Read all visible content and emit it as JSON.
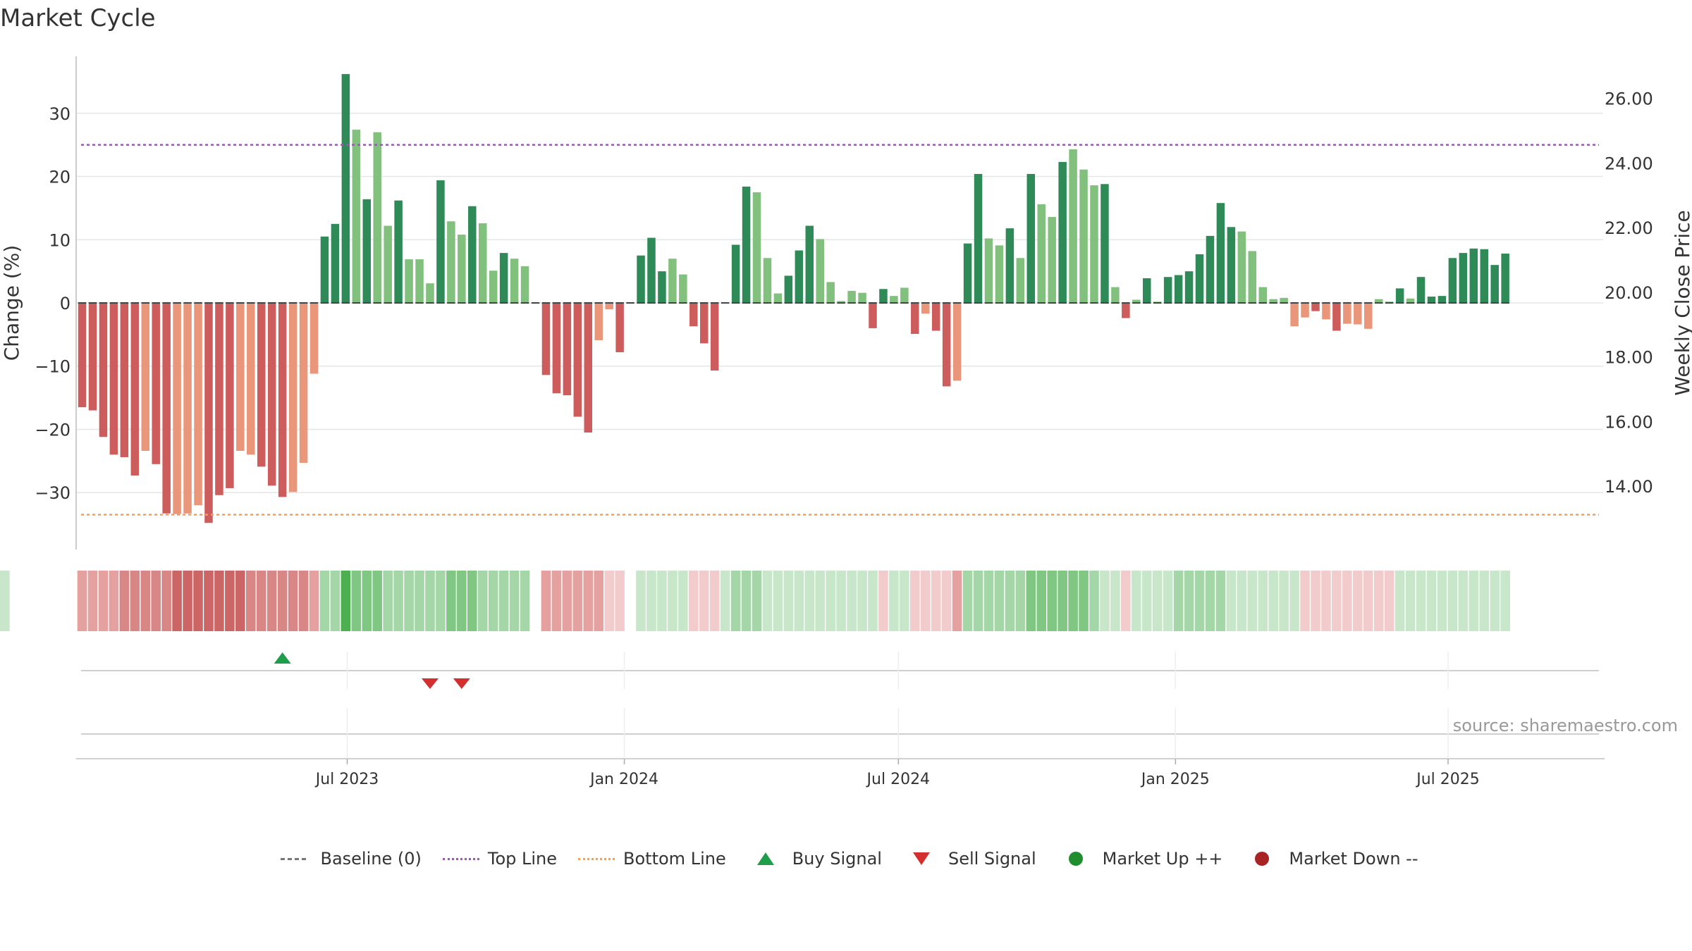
{
  "title": "Market Cycle",
  "source": "source: sharemaestro.com",
  "colors": {
    "up_dark": "#2e8b57",
    "up_light": "#82c07e",
    "down_dark": "#cd5c5c",
    "down_light": "#e9967a",
    "top_line": "#9b59b6",
    "bottom_line": "#f0a060",
    "buy": "#1f9d4a",
    "sell": "#d32f2f",
    "market_up": "#1e8e2e",
    "market_down": "#a82424"
  },
  "legend": [
    {
      "label": "Baseline (0)",
      "symbol": "dash-grey"
    },
    {
      "label": "Top Line",
      "symbol": "dot-purple"
    },
    {
      "label": "Bottom Line",
      "symbol": "dot-orange"
    },
    {
      "label": "Buy Signal",
      "symbol": "tri-up"
    },
    {
      "label": "Sell Signal",
      "symbol": "tri-down"
    },
    {
      "label": "Market Up ++",
      "symbol": "circle-green"
    },
    {
      "label": "Market Down --",
      "symbol": "circle-red"
    }
  ],
  "chart_data": {
    "type": "bar",
    "title": "Market Cycle",
    "ylabel": "Change (%)",
    "y2label": "Weekly Close Price",
    "ylim": [
      -39,
      39
    ],
    "y2lim": [
      12.28,
      27.54
    ],
    "yticks": [
      -30,
      -20,
      -10,
      0,
      10,
      20,
      30
    ],
    "ytick_labels": [
      "−30",
      "−20",
      "−10",
      "0",
      "10",
      "20",
      "30"
    ],
    "y2ticks": [
      14.0,
      16.0,
      18.0,
      20.0,
      22.0,
      24.0,
      26.0
    ],
    "y2tick_labels": [
      "14.00",
      "16.00",
      "18.00",
      "20.00",
      "22.00",
      "24.00",
      "26.00"
    ],
    "top_line": 25,
    "bottom_line": -33.5,
    "baseline": 0,
    "xlim": [
      "2023-01-02",
      "2025-10-12"
    ],
    "xticks": [
      "2023-07-01",
      "2024-01-01",
      "2024-07-01",
      "2025-01-01",
      "2025-07-01"
    ],
    "xtick_labels": [
      "Jul 2023",
      "Jan 2024",
      "Jul 2024",
      "Jan 2025",
      "Jul 2025"
    ],
    "grid": true,
    "legend_position": "bottom",
    "start_date": "2023-01-06",
    "values": [
      -16.5,
      -17,
      -21.2,
      -24,
      -24.4,
      -27.3,
      -23.4,
      -25.5,
      -33.3,
      -33.4,
      -33.3,
      -32,
      -34.8,
      -30.4,
      -29.3,
      -23.4,
      -24,
      -25.9,
      -28.9,
      -30.7,
      -29.9,
      -25.3,
      -11.2,
      10.5,
      12.5,
      36.2,
      27.4,
      16.4,
      27,
      12.2,
      16.2,
      6.9,
      6.9,
      3.1,
      19.4,
      12.9,
      10.8,
      15.3,
      12.6,
      5.1,
      7.9,
      7,
      5.8,
      0,
      -11.4,
      -14.3,
      -14.6,
      -18,
      -20.5,
      -5.9,
      -1,
      -7.8,
      0,
      7.5,
      10.3,
      5,
      7,
      4.5,
      -3.7,
      -6.4,
      -10.7,
      0,
      9.2,
      18.4,
      17.5,
      7.1,
      1.5,
      4.3,
      8.3,
      12.2,
      10.1,
      3.3,
      0.3,
      1.9,
      1.6,
      -4,
      2.2,
      1.1,
      2.4,
      -4.9,
      -1.7,
      -4.4,
      -13.2,
      -12.3,
      9.4,
      20.4,
      10.2,
      9.1,
      11.8,
      7.1,
      20.4,
      15.6,
      13.6,
      22.3,
      24.3,
      21.1,
      18.6,
      18.8,
      2.5,
      -2.4,
      0.5,
      3.9,
      0.2,
      4.1,
      4.4,
      5,
      7.7,
      10.6,
      15.8,
      12,
      11.3,
      8.2,
      2.5,
      0.6,
      0.8,
      -3.7,
      -2.3,
      -1.3,
      -2.6,
      -4.4,
      -3.3,
      -3.4,
      -4.1,
      0.6,
      0.2,
      2.3,
      0.7,
      4.1,
      1,
      1.1,
      7.1,
      7.9,
      8.6,
      8.5,
      6,
      7.8
    ],
    "light_bars": [
      6,
      9,
      10,
      11,
      15,
      16,
      20,
      21,
      22,
      26,
      28,
      29,
      31,
      32,
      33,
      35,
      36,
      38,
      39,
      41,
      42,
      49,
      50,
      56,
      57,
      64,
      65,
      66,
      70,
      71,
      72,
      73,
      74,
      77,
      78,
      80,
      83,
      86,
      87,
      89,
      91,
      92,
      94,
      95,
      96,
      98,
      100,
      102,
      110,
      111,
      112,
      113,
      114,
      115,
      116,
      118,
      120,
      121,
      122,
      123,
      124,
      126
    ],
    "strip_levels": [
      2,
      2,
      2,
      2,
      3,
      3,
      3,
      3,
      3,
      4,
      4,
      4,
      4,
      4,
      4,
      4,
      3,
      3,
      3,
      3,
      3,
      3,
      2,
      2,
      2,
      4,
      3,
      3,
      3,
      2,
      2,
      2,
      2,
      2,
      2,
      3,
      3,
      3,
      2,
      2,
      2,
      2,
      2,
      2,
      2,
      2,
      2,
      2,
      2,
      2,
      1,
      1,
      -1,
      1,
      1,
      1,
      1,
      1,
      1,
      1,
      1,
      1,
      2,
      2,
      2,
      1,
      1,
      1,
      1,
      1,
      1,
      1,
      1,
      1,
      1,
      1,
      1,
      1,
      1,
      1,
      1,
      1,
      1,
      2,
      2,
      2,
      2,
      2,
      2,
      2,
      3,
      3,
      3,
      3,
      3,
      3,
      2,
      1,
      1,
      1,
      1,
      1,
      1,
      1,
      2,
      2,
      2,
      2,
      2,
      1,
      1,
      1,
      1,
      1,
      1,
      1,
      1,
      1,
      1,
      1,
      1,
      1,
      1,
      1,
      1,
      1,
      1,
      1,
      1,
      1,
      1,
      1,
      1,
      1
    ],
    "strip_dir": [
      -1,
      -1,
      -1,
      -1,
      -1,
      -1,
      -1,
      -1,
      -1,
      -1,
      -1,
      -1,
      -1,
      -1,
      -1,
      -1,
      -1,
      -1,
      -1,
      -1,
      -1,
      -1,
      -1,
      1,
      1,
      1,
      1,
      1,
      1,
      1,
      1,
      1,
      1,
      1,
      1,
      1,
      1,
      1,
      1,
      1,
      1,
      1,
      1,
      0,
      -1,
      -1,
      -1,
      -1,
      -1,
      -1,
      -1,
      -1,
      0,
      1,
      1,
      1,
      1,
      1,
      -1,
      -1,
      -1,
      1,
      1,
      1,
      1,
      1,
      1,
      1,
      1,
      1,
      1,
      1,
      1,
      1,
      1,
      1,
      -1,
      1,
      1,
      -1,
      -1,
      -1,
      -1,
      -1,
      1,
      1,
      1,
      1,
      1,
      1,
      1,
      1,
      1,
      1,
      1,
      1,
      1,
      1,
      1,
      -1,
      1,
      1,
      1,
      1,
      1,
      1,
      1,
      1,
      1,
      1,
      1,
      1,
      1,
      1,
      1,
      1,
      -1,
      -1,
      -1,
      -1,
      -1,
      -1,
      -1,
      -1,
      -1,
      1,
      1,
      1,
      1,
      1,
      1,
      1,
      1,
      1,
      1,
      1,
      1,
      1
    ],
    "buy_signals": [
      "2023-05-19"
    ],
    "sell_signals": [
      "2023-08-25",
      "2023-09-15"
    ]
  }
}
